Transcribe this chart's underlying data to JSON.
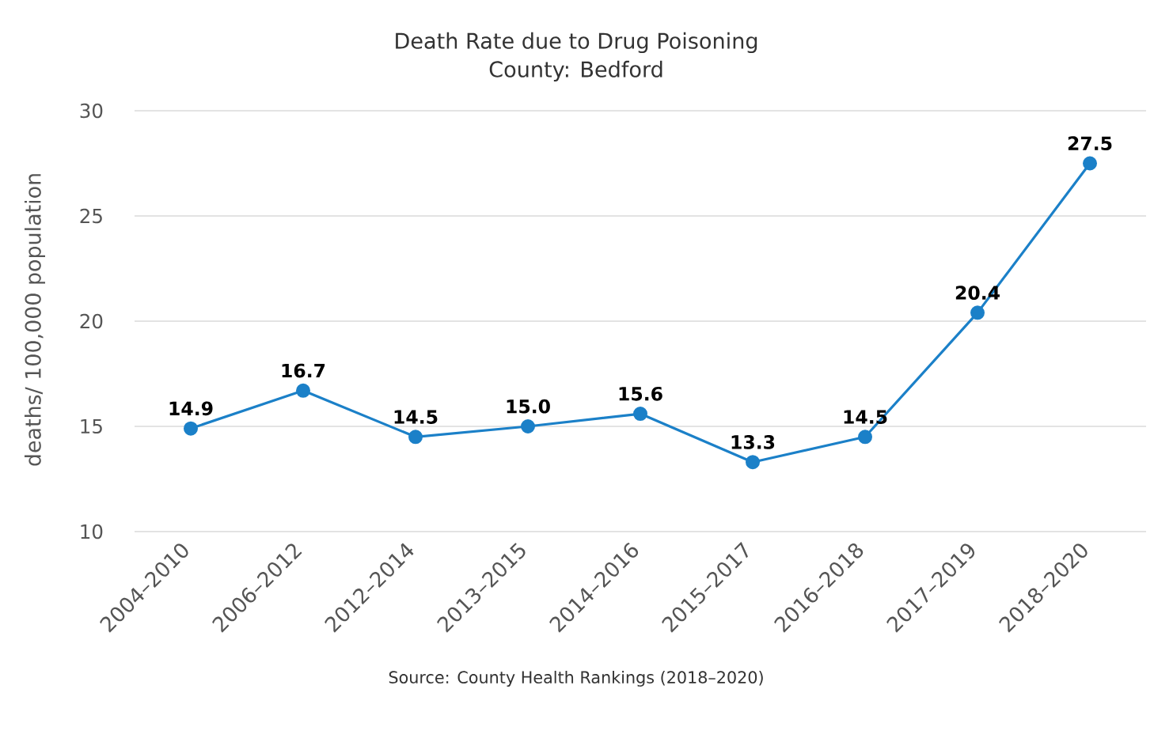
{
  "chart_data": {
    "type": "line",
    "title": "Death Rate due to Drug Poisoning",
    "subtitle": "County: Bedford",
    "ylabel": "deaths/ 100,000 population",
    "categories": [
      "2004–2010",
      "2006–2012",
      "2012–2014",
      "2013–2015",
      "2014–2016",
      "2015–2017",
      "2016–2018",
      "2017–2019",
      "2018–2020"
    ],
    "values": [
      14.9,
      16.7,
      14.5,
      15.0,
      15.6,
      13.3,
      14.5,
      20.4,
      27.5
    ],
    "value_labels": [
      "14.9",
      "16.7",
      "14.5",
      "15.0",
      "15.6",
      "13.3",
      "14.5",
      "20.4",
      "27.5"
    ],
    "color": "#1b80c8",
    "ylim": [
      10,
      30
    ],
    "yticks": [
      10,
      15,
      20,
      25,
      30
    ],
    "grid": "y",
    "marker": "circle",
    "line_style": "solid",
    "annotations": [
      "Source: County Health Rankings (2018–2020)"
    ]
  }
}
